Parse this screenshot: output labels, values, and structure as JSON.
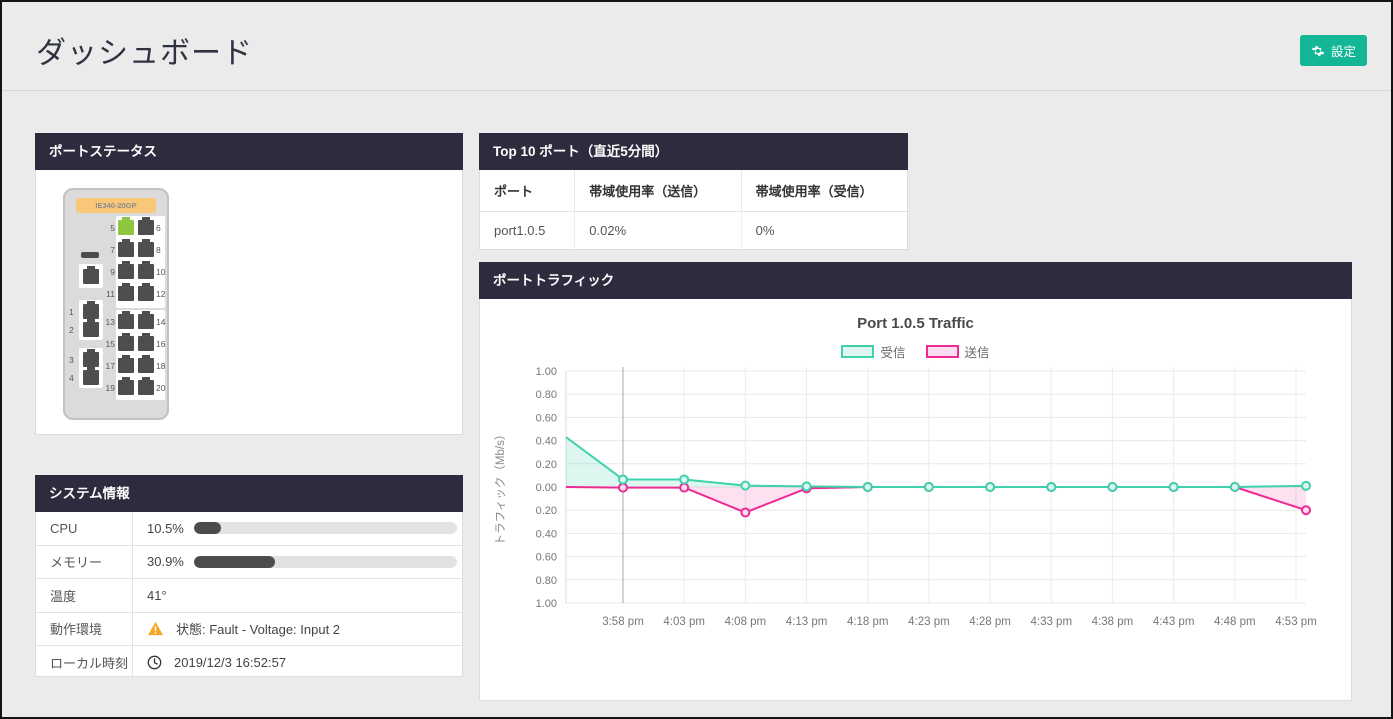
{
  "page": {
    "title": "ダッシュボード",
    "settings_button": {
      "label": "設定",
      "color": "#14b795"
    }
  },
  "port_status": {
    "title": "ポートステータス",
    "device": {
      "model": "IE340-20GP",
      "active_ports": [
        5
      ],
      "active_color": "#8dc63f",
      "right_rows": [
        [
          5,
          6
        ],
        [
          7,
          8
        ],
        [
          9,
          10
        ],
        [
          11,
          12
        ],
        [
          13,
          14
        ],
        [
          15,
          16
        ],
        [
          17,
          18
        ],
        [
          19,
          20
        ]
      ],
      "left_ports": [
        1,
        2,
        3,
        4
      ]
    }
  },
  "system_info": {
    "title": "システム情報",
    "rows": [
      {
        "label": "CPU",
        "value": "10.5%",
        "progress": 10.5
      },
      {
        "label": "メモリー",
        "value": "30.9%",
        "progress": 30.9
      },
      {
        "label": "温度",
        "value": "41°"
      },
      {
        "label": "動作環境",
        "value": "状態: Fault - Voltage: Input 2",
        "icon": "warning"
      },
      {
        "label": "ローカル時刻",
        "value": "2019/12/3 16:52:57",
        "icon": "clock"
      }
    ]
  },
  "top_ports": {
    "title": "Top 10 ポート（直近5分間）",
    "columns": [
      "ポート",
      "帯域使用率（送信）",
      "帯域使用率（受信）"
    ],
    "rows": [
      [
        "port1.0.5",
        "0.02%",
        "0%"
      ]
    ]
  },
  "traffic": {
    "title": "ポートトラフィック"
  },
  "chart_data": {
    "type": "area",
    "title": "Port 1.0.5 Traffic",
    "ylabel": "トラフィック（Mb/s）",
    "ylim": [
      -1,
      1
    ],
    "y_tick_values": [
      1,
      0.8,
      0.6,
      0.4,
      0.2,
      0,
      -0.2,
      -0.4,
      -0.6,
      -0.8,
      -1
    ],
    "y_tick_labels": [
      "1.00",
      "0.80",
      "0.60",
      "0.40",
      "0.20",
      "0.00",
      "0.20",
      "0.40",
      "0.60",
      "0.80",
      "1.00"
    ],
    "x_ticks": [
      "3:58 pm",
      "4:03 pm",
      "4:08 pm",
      "4:13 pm",
      "4:18 pm",
      "4:23 pm",
      "4:28 pm",
      "4:33 pm",
      "4:38 pm",
      "4:43 pm",
      "4:48 pm",
      "4:53 pm"
    ],
    "highlight_x_tick": "3:58 pm",
    "grid": true,
    "legend_position": "top",
    "series": [
      {
        "name": "受信",
        "color": "#3fd0ac",
        "fill": "rgba(64,208,173,0.18)",
        "dot_fill": "#dff6f0",
        "values": [
          0.43,
          0.065,
          0.065,
          0.012,
          0.005,
          0,
          0,
          0,
          0,
          0,
          0,
          0,
          0.01
        ]
      },
      {
        "name": "送信",
        "color": "#ee2b95",
        "fill": "rgba(238,43,149,0.14)",
        "dot_fill": "#fbdef0",
        "values": [
          0,
          -0.005,
          -0.005,
          -0.22,
          -0.012,
          0,
          0,
          0,
          0,
          0,
          0,
          0,
          -0.2
        ]
      }
    ]
  }
}
